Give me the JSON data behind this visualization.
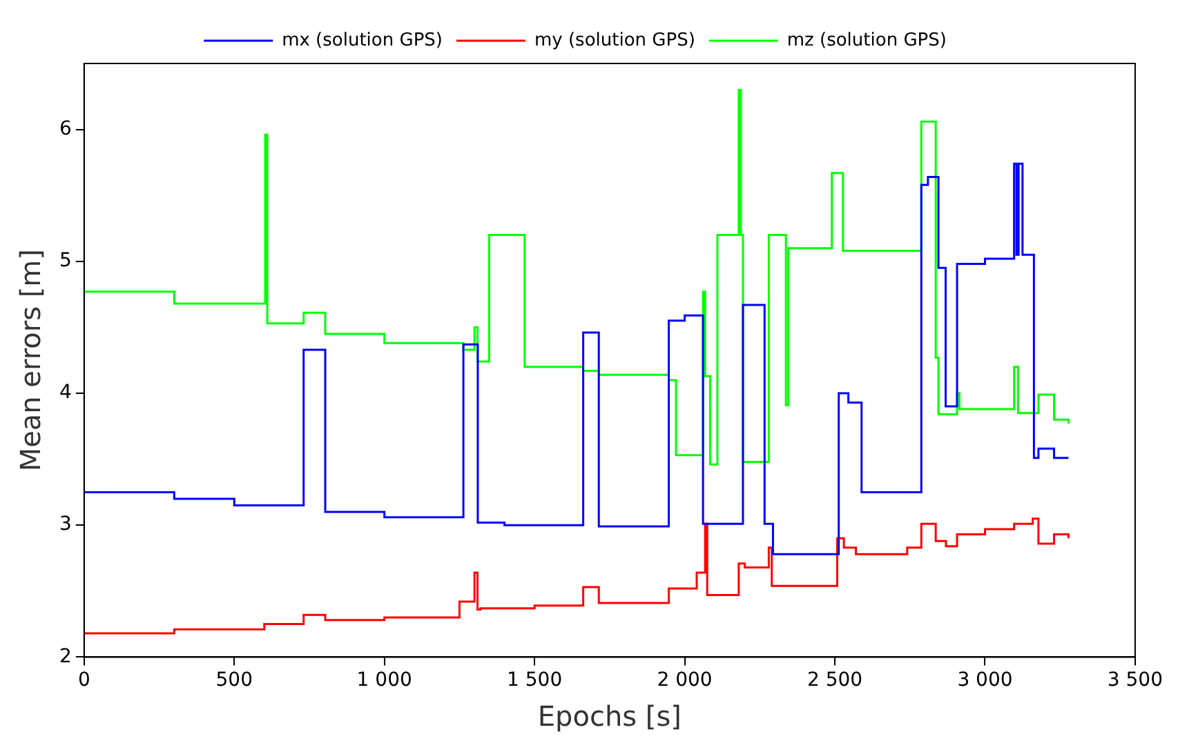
{
  "chart_data": {
    "type": "step",
    "xlabel": "Epochs [s]",
    "ylabel": "Mean errors [m]",
    "xlim": [
      0,
      3500
    ],
    "xticks": [
      0,
      500,
      {
        "value": 1000,
        "label": "1 000"
      },
      {
        "value": 1500,
        "label": "1 500"
      },
      {
        "value": 2000,
        "label": "2 000"
      },
      {
        "value": 2500,
        "label": "2 500"
      },
      {
        "value": 3000,
        "label": "3 000"
      },
      {
        "value": 3500,
        "label": "3 500"
      }
    ],
    "ylim": [
      2,
      6.5
    ],
    "yticks": [
      2,
      3,
      4,
      5,
      6
    ],
    "grid": false,
    "legend": "top",
    "marker": "none",
    "line_style": "solid",
    "series": [
      {
        "name": "mx (solution GPS)",
        "color": "#0000ff",
        "x": [
          0,
          300,
          500,
          731,
          803,
          1000,
          1263,
          1311,
          1400,
          1662,
          1714,
          1947,
          2000,
          2061,
          2194,
          2266,
          2294,
          2513,
          2545,
          2589,
          2788,
          2810,
          2845,
          2869,
          2907,
          3000,
          3097,
          3105,
          3112,
          3125,
          3163,
          3178,
          3230,
          3278
        ],
        "values": [
          3.25,
          3.2,
          3.15,
          4.33,
          3.1,
          3.06,
          4.37,
          3.02,
          3.0,
          4.46,
          2.99,
          4.55,
          4.59,
          3.01,
          4.67,
          3.01,
          2.78,
          4.0,
          3.93,
          3.25,
          5.58,
          5.64,
          4.95,
          3.9,
          4.98,
          5.02,
          5.74,
          5.05,
          5.74,
          5.05,
          3.51,
          3.58,
          3.51,
          3.51
        ]
      },
      {
        "name": "my (solution GPS)",
        "color": "#ff0000",
        "x": [
          0,
          300,
          600,
          731,
          803,
          1000,
          1250,
          1300,
          1310,
          1320,
          1500,
          1662,
          1714,
          1947,
          2040,
          2068,
          2075,
          2180,
          2200,
          2280,
          2290,
          2508,
          2530,
          2570,
          2741,
          2788,
          2836,
          2870,
          2907,
          3000,
          3097,
          3159,
          3178,
          3230,
          3278
        ],
        "values": [
          2.18,
          2.21,
          2.25,
          2.32,
          2.28,
          2.3,
          2.42,
          2.64,
          2.36,
          2.37,
          2.39,
          2.53,
          2.41,
          2.52,
          2.64,
          3.01,
          2.47,
          2.71,
          2.68,
          2.83,
          2.54,
          2.9,
          2.83,
          2.78,
          2.83,
          3.01,
          2.88,
          2.84,
          2.93,
          2.97,
          3.01,
          3.05,
          2.86,
          2.93,
          2.9
        ]
      },
      {
        "name": "mz (solution GPS)",
        "color": "#00ff00",
        "x": [
          0,
          300,
          603,
          610,
          731,
          803,
          1000,
          1263,
          1300,
          1310,
          1349,
          1467,
          1662,
          1714,
          1947,
          1971,
          2061,
          2068,
          2085,
          2109,
          2180,
          2187,
          2194,
          2280,
          2337,
          2345,
          2490,
          2527,
          2788,
          2836,
          2845,
          2907,
          2915,
          3097,
          3110,
          3178,
          3230,
          3278
        ],
        "values": [
          4.77,
          4.68,
          5.96,
          4.53,
          4.61,
          4.45,
          4.38,
          4.33,
          4.5,
          4.24,
          5.2,
          4.2,
          4.17,
          4.14,
          4.1,
          3.53,
          4.77,
          4.13,
          3.46,
          5.2,
          6.3,
          5.2,
          3.48,
          5.2,
          3.91,
          5.1,
          5.67,
          5.08,
          6.06,
          4.27,
          3.84,
          4.0,
          3.88,
          4.2,
          3.85,
          3.99,
          3.8,
          3.77
        ]
      }
    ]
  }
}
